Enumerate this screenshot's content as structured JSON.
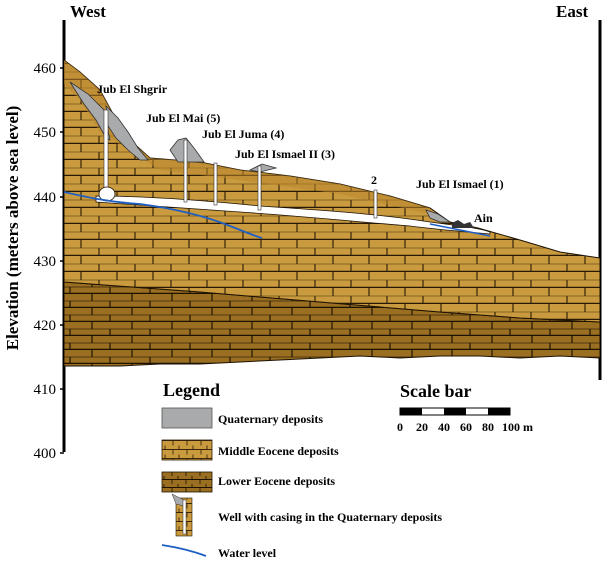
{
  "directions": {
    "west": "West",
    "east": "East"
  },
  "y_axis": {
    "label": "Elevation (meters above sea level)",
    "ticks": [
      "460",
      "450",
      "440",
      "430",
      "420",
      "410",
      "400"
    ]
  },
  "wells": [
    {
      "label": "Jub El Shgrir"
    },
    {
      "label": "Jub El Mai (5)"
    },
    {
      "label": "Jub El Juma (4)"
    },
    {
      "label": "Jub El Ismael II (3)"
    },
    {
      "label": "2"
    },
    {
      "label": "Jub El Ismael (1)"
    },
    {
      "label": "Ain"
    }
  ],
  "legend": {
    "title": "Legend",
    "items": [
      {
        "label": "Quaternary deposits",
        "color": "#a9aaac"
      },
      {
        "label": "Middle Eocene deposits",
        "color": "#c99a3e"
      },
      {
        "label": "Lower Eocene deposits",
        "color": "#9a6f22"
      },
      {
        "label": "Well with casing in the Quaternary deposits",
        "color": "#a9aaac"
      },
      {
        "label": "Water level",
        "color": "#1f5fc4"
      }
    ]
  },
  "scale_bar": {
    "title": "Scale bar",
    "ticks": [
      "0",
      "20",
      "40",
      "60",
      "80",
      "100 m"
    ]
  },
  "colors": {
    "quaternary": "#a9aaac",
    "middle_eocene": "#c99a3e",
    "lower_eocene": "#9a6f22",
    "water": "#1f5fc4"
  }
}
